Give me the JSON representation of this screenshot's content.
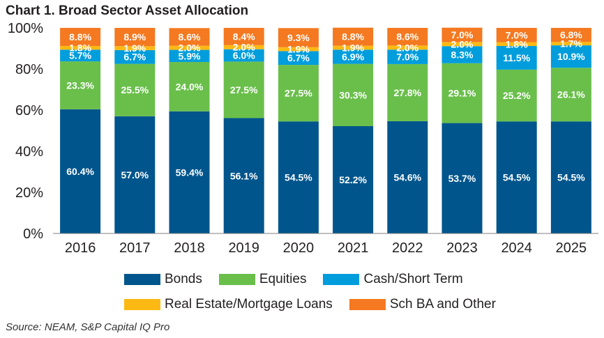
{
  "title": "Chart 1. Broad Sector Asset Allocation",
  "source": "Source: NEAM, S&P Capital IQ Pro",
  "chart_data": {
    "type": "bar",
    "stacked": true,
    "categories": [
      "2016",
      "2017",
      "2018",
      "2019",
      "2020",
      "2021",
      "2022",
      "2023",
      "2024",
      "2025"
    ],
    "ylim": [
      0,
      100
    ],
    "yticks": [
      "0%",
      "20%",
      "40%",
      "60%",
      "80%",
      "100%"
    ],
    "grid": false,
    "legend_placement": "bottom",
    "series": [
      {
        "name": "Bonds",
        "color": "#00558c",
        "values": [
          60.4,
          57.0,
          59.4,
          56.1,
          54.5,
          52.2,
          54.6,
          53.7,
          54.5,
          54.5
        ],
        "labels": [
          "60.4%",
          "57.0%",
          "59.4%",
          "56.1%",
          "54.5%",
          "52.2%",
          "54.6%",
          "53.7%",
          "54.5%",
          "54.5%"
        ]
      },
      {
        "name": "Equities",
        "color": "#6abf4b",
        "values": [
          23.3,
          25.5,
          24.0,
          27.5,
          27.5,
          30.3,
          27.8,
          29.1,
          25.2,
          26.1
        ],
        "labels": [
          "23.3%",
          "25.5%",
          "24.0%",
          "27.5%",
          "27.5%",
          "30.3%",
          "27.8%",
          "29.1%",
          "25.2%",
          "26.1%"
        ]
      },
      {
        "name": "Cash/Short Term",
        "color": "#009ddc",
        "values": [
          5.7,
          6.7,
          5.9,
          6.0,
          6.7,
          6.9,
          7.0,
          8.3,
          11.5,
          10.9
        ],
        "labels": [
          "5.7%",
          "6.7%",
          "5.9%",
          "6.0%",
          "6.7%",
          "6.9%",
          "7.0%",
          "8.3%",
          "11.5%",
          "10.9%"
        ]
      },
      {
        "name": "Real Estate/Mortgage Loans",
        "color": "#fdb913",
        "values": [
          1.8,
          1.9,
          2.0,
          2.0,
          1.9,
          1.9,
          2.0,
          2.0,
          1.8,
          1.7
        ],
        "labels": [
          "1.8%",
          "1.9%",
          "2.0%",
          "2.0%",
          "1.9%",
          "1.9%",
          "2.0%",
          "2.0%",
          "1.8%",
          "1.7%"
        ]
      },
      {
        "name": "Sch BA and Other",
        "color": "#f47920",
        "values": [
          8.8,
          8.9,
          8.6,
          8.4,
          9.3,
          8.8,
          8.6,
          7.0,
          7.0,
          6.8
        ],
        "labels": [
          "8.8%",
          "8.9%",
          "8.6%",
          "8.4%",
          "9.3%",
          "8.8%",
          "8.6%",
          "7.0%",
          "7.0%",
          "6.8%"
        ]
      }
    ]
  }
}
